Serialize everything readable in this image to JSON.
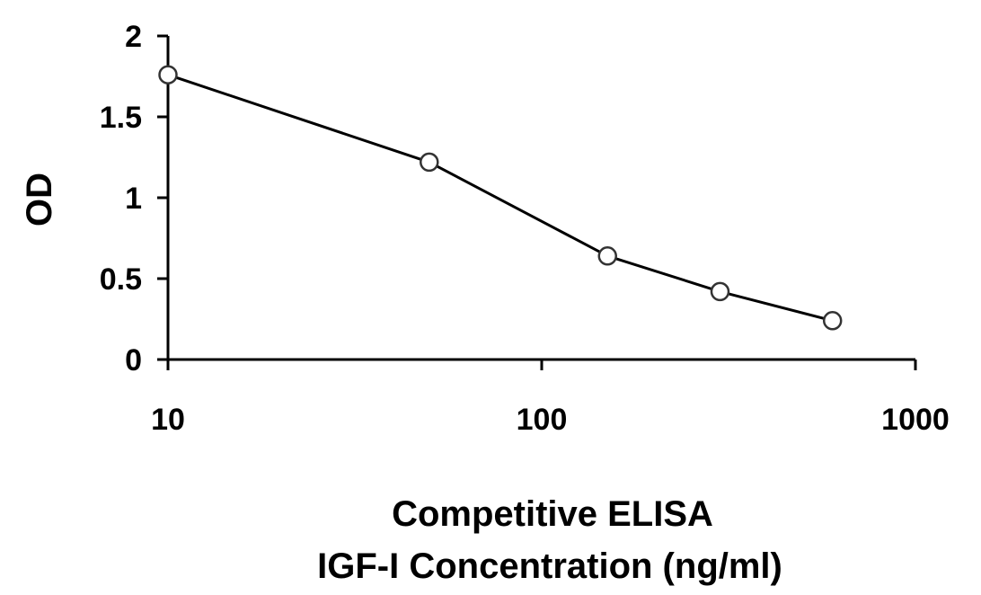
{
  "chart_data": {
    "type": "line",
    "title": "",
    "xlabel": [
      "Competitive ELISA",
      "IGF-I Concentration (ng/ml)"
    ],
    "ylabel": "OD",
    "xscale": "log",
    "xlim": [
      10,
      1000
    ],
    "ylim": [
      0,
      2
    ],
    "xticks": [
      "10",
      "100",
      "1000"
    ],
    "yticks": [
      "0",
      "0.5",
      "1",
      "1.5",
      "2"
    ],
    "grid": false,
    "legend": "none",
    "series": [
      {
        "x": [
          10,
          50,
          150,
          300,
          600
        ],
        "y": [
          1.76,
          1.22,
          0.64,
          0.42,
          0.24
        ],
        "line_color": "#000000",
        "marker": "open-circle"
      }
    ]
  }
}
